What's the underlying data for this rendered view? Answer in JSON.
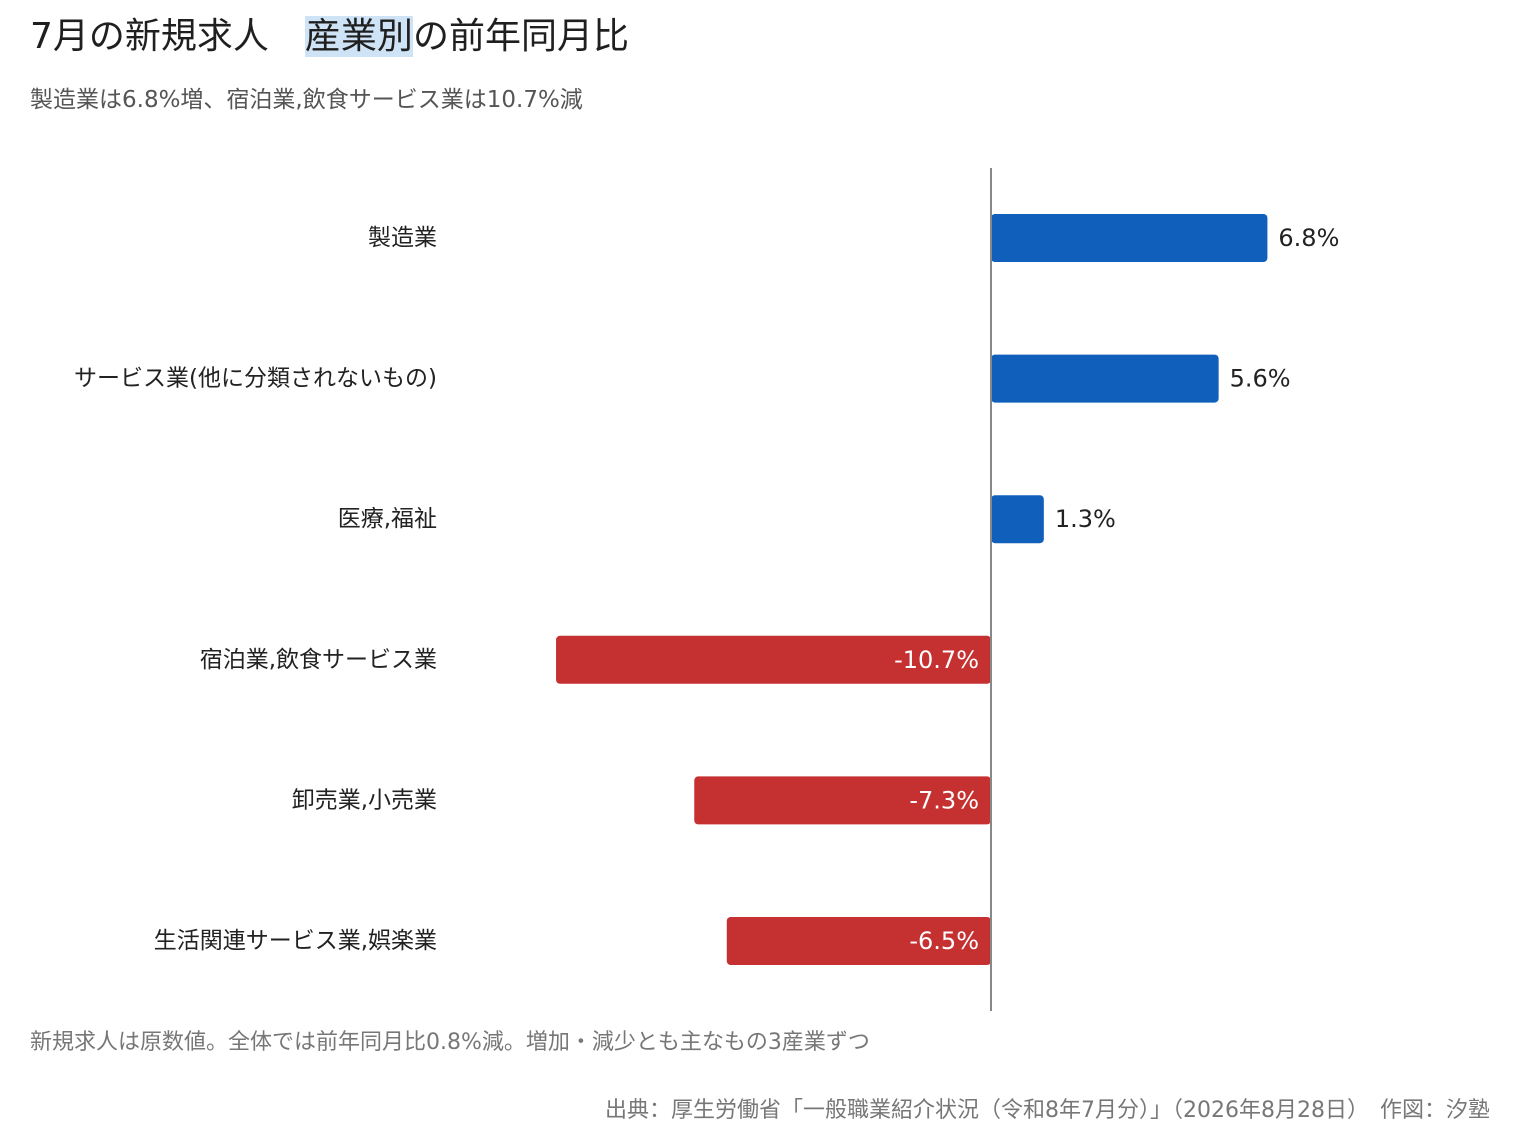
{
  "header": {
    "title_part1": "7月の新規求人",
    "title_part2": "産業別",
    "title_part3": "の前年同月比",
    "subtitle": "製造業は6.8%増、宿泊業,飲食サービス業は10.7%減"
  },
  "footer": {
    "note": "新規求人は原数値。全体では前年同月比0.8%減。増加・減少とも主なもの3産業ずつ",
    "source": "出典：厚生労働省「一般職業紹介状況（令和8年7月分）」（2026年8月28日）　作図：汐塾"
  },
  "chart_data": {
    "type": "bar",
    "orientation": "horizontal",
    "unit": "%",
    "categories": [
      "製造業",
      "サービス業(他に分類されないもの)",
      "医療,福祉",
      "宿泊業,飲食サービス業",
      "卸売業,小売業",
      "生活関連サービス業,娯楽業"
    ],
    "values": [
      6.8,
      5.6,
      1.3,
      -10.7,
      -7.3,
      -6.5
    ],
    "value_labels": [
      "6.8%",
      "5.6%",
      "1.3%",
      "-10.7%",
      "-7.3%",
      "-6.5%"
    ],
    "positive_color": "#1060bb",
    "negative_color": "#c53030",
    "axis_color": "#888888",
    "zero_line": true,
    "grid": false,
    "legend": "none"
  }
}
